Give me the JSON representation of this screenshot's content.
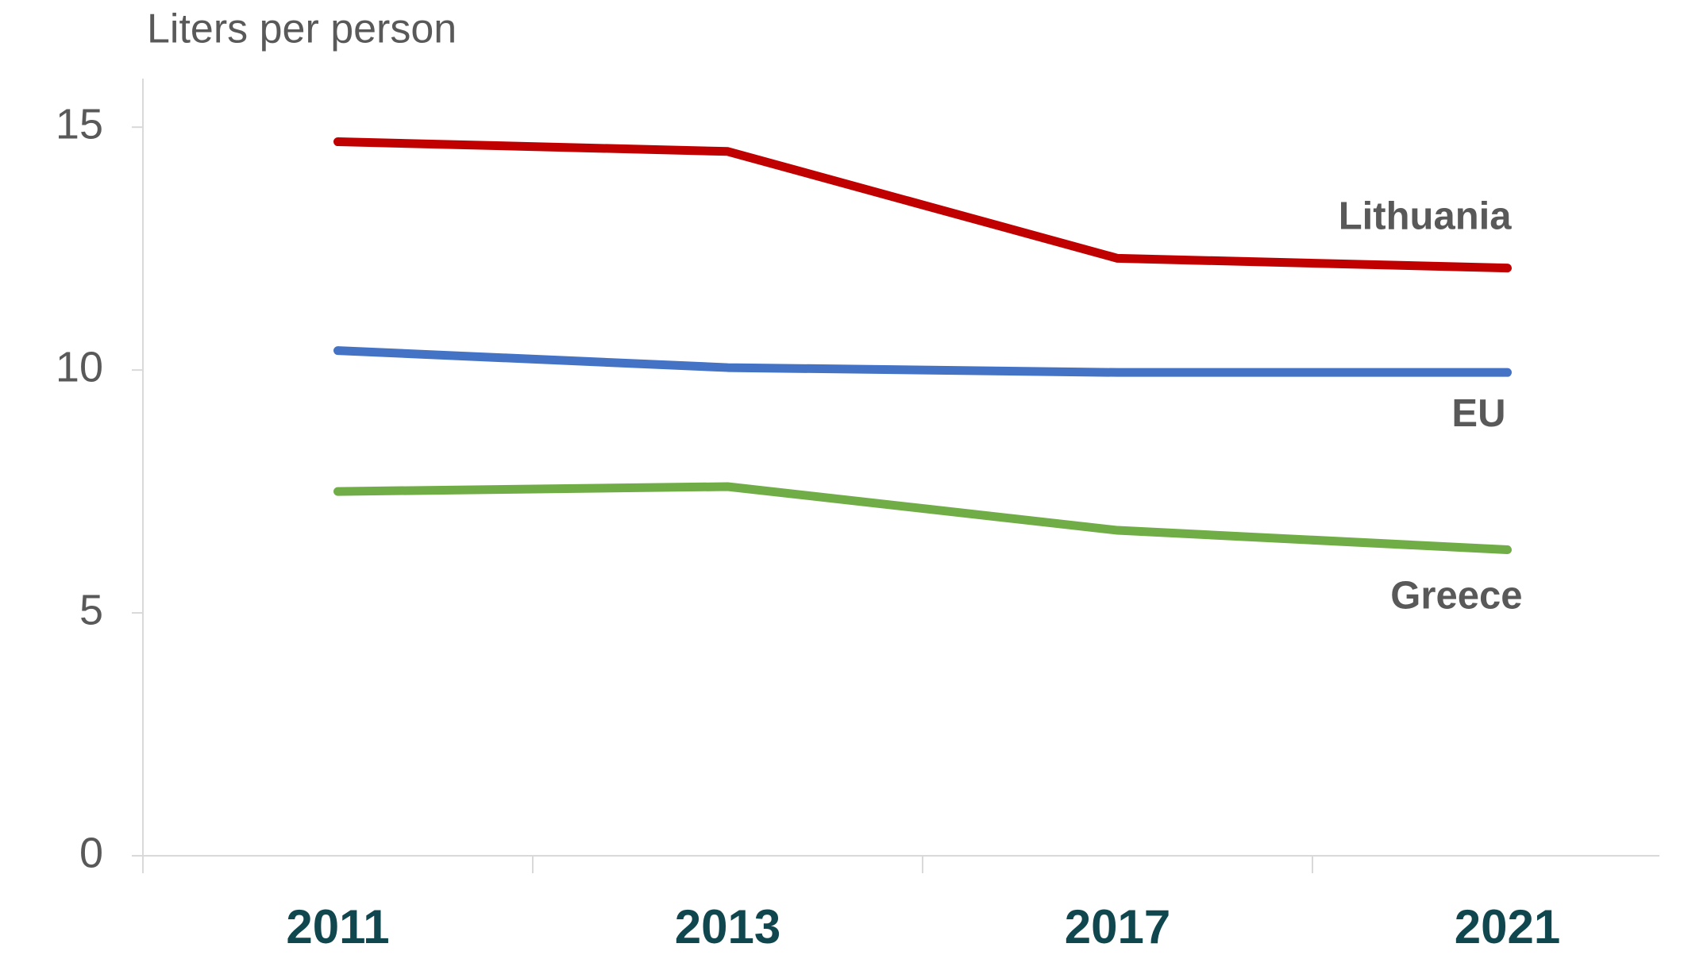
{
  "chart_data": {
    "type": "line",
    "y_axis_label": "Liters per person",
    "categories": [
      "2011",
      "2013",
      "2017",
      "2021"
    ],
    "series": [
      {
        "name": "Lithuania",
        "color": "#c00000",
        "values": [
          14.7,
          14.5,
          12.3,
          12.1
        ]
      },
      {
        "name": "EU",
        "color": "#4472c4",
        "values": [
          10.4,
          10.05,
          9.95,
          9.95
        ]
      },
      {
        "name": "Greece",
        "color": "#70ad47",
        "values": [
          7.5,
          7.6,
          6.7,
          6.3
        ]
      }
    ],
    "ylim": [
      0,
      16
    ],
    "yticks": [
      0,
      5,
      10,
      15
    ],
    "grid": false
  }
}
